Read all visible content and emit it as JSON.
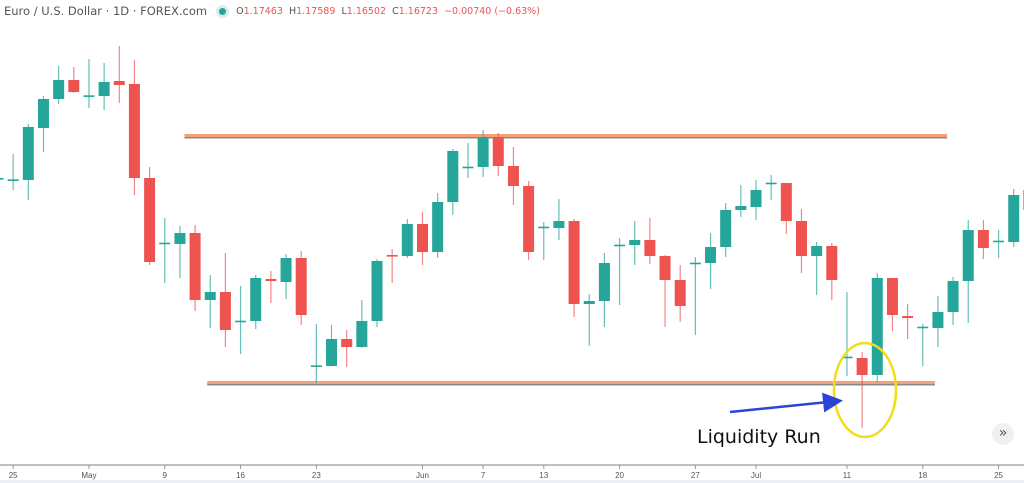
{
  "header": {
    "symbol_title": "Euro / U.S. Dollar · 1D · FOREX.com",
    "status_color": "#26a69a",
    "open_label": "O",
    "open": "1.17463",
    "high_label": "H",
    "high": "1.17589",
    "low_label": "L",
    "low": "1.16502",
    "close_label": "C",
    "close": "1.16723",
    "change": "−0.00740 (−0.63%)"
  },
  "annotation": {
    "text": "Liquidity Run",
    "highlight_color": "#f2dc1c",
    "arrow_color": "#2a44d8"
  },
  "scroll_button": {
    "icon": "double-chevron-right-icon",
    "glyph": "»"
  },
  "chart_data": {
    "type": "candlestick",
    "title": "",
    "colors": {
      "up": "#26a69a",
      "down": "#ef5350",
      "level_line": "#f4a07a"
    },
    "x_ticks": [
      {
        "label": "25",
        "index": 1
      },
      {
        "label": "May",
        "index": 6
      },
      {
        "label": "9",
        "index": 11
      },
      {
        "label": "16",
        "index": 16
      },
      {
        "label": "23",
        "index": 21
      },
      {
        "label": "Jun",
        "index": 28
      },
      {
        "label": "7",
        "index": 32
      },
      {
        "label": "13",
        "index": 36
      },
      {
        "label": "20",
        "index": 41
      },
      {
        "label": "27",
        "index": 46
      },
      {
        "label": "Jul",
        "index": 50
      },
      {
        "label": "11",
        "index": 56
      },
      {
        "label": "18",
        "index": 61
      },
      {
        "label": "25",
        "index": 66
      }
    ],
    "candles_ohlc": [
      [
        1.2033,
        1.2039,
        1.2027,
        1.2033
      ],
      [
        1.203,
        1.2069,
        1.2015,
        1.2031
      ],
      [
        1.203,
        1.2114,
        1.2,
        1.21095
      ],
      [
        1.2108,
        1.2156,
        1.2072,
        1.21515
      ],
      [
        1.21515,
        1.2201,
        1.2144,
        1.218
      ],
      [
        1.218,
        1.21995,
        1.21605,
        1.2162
      ],
      [
        1.2156,
        1.22115,
        1.2138,
        1.2157
      ],
      [
        1.2156,
        1.22055,
        1.2135,
        1.2177
      ],
      [
        1.21785,
        1.2231,
        1.21455,
        1.21725
      ],
      [
        1.2174,
        1.221,
        1.20075,
        1.2033
      ],
      [
        1.2033,
        1.20495,
        1.19025,
        1.1907
      ],
      [
        1.19355,
        1.1973,
        1.18755,
        1.1936
      ],
      [
        1.1934,
        1.1961,
        1.1883,
        1.19505
      ],
      [
        1.19505,
        1.19625,
        1.18335,
        1.185
      ],
      [
        1.185,
        1.18875,
        1.1808,
        1.1862
      ],
      [
        1.1862,
        1.19205,
        1.17795,
        1.1805
      ],
      [
        1.18185,
        1.1871,
        1.1769,
        1.1819
      ],
      [
        1.18185,
        1.18875,
        1.18065,
        1.1883
      ],
      [
        1.18815,
        1.18935,
        1.18455,
        1.18785
      ],
      [
        1.1877,
        1.1919,
        1.18515,
        1.1913
      ],
      [
        1.1913,
        1.19235,
        1.18125,
        1.18275
      ],
      [
        1.1751,
        1.1814,
        1.17255,
        1.1752
      ],
      [
        1.1751,
        1.18125,
        1.175,
        1.17915
      ],
      [
        1.17915,
        1.1805,
        1.17495,
        1.17795
      ],
      [
        1.17795,
        1.185,
        1.1778,
        1.18185
      ],
      [
        1.18185,
        1.19115,
        1.18095,
        1.19085
      ],
      [
        1.19175,
        1.19265,
        1.18755,
        1.1917
      ],
      [
        1.1916,
        1.19715,
        1.1913,
        1.1964
      ],
      [
        1.1964,
        1.1982,
        1.19025,
        1.1922
      ],
      [
        1.1922,
        1.20105,
        1.1913,
        1.1997
      ],
      [
        1.1997,
        1.20765,
        1.19775,
        1.20735
      ],
      [
        1.20495,
        1.20855,
        1.2033,
        1.205
      ],
      [
        1.20495,
        1.2105,
        1.20345,
        1.20945
      ],
      [
        1.20945,
        1.21005,
        1.2036,
        1.2051
      ],
      [
        1.2051,
        1.20795,
        1.19925,
        1.2021
      ],
      [
        1.2021,
        1.20285,
        1.191,
        1.1922
      ],
      [
        1.19595,
        1.1967,
        1.191,
        1.196
      ],
      [
        1.1958,
        1.20015,
        1.194,
        1.19685
      ],
      [
        1.19685,
        1.19715,
        1.18245,
        1.1844
      ],
      [
        1.1844,
        1.1859,
        1.1781,
        1.18485
      ],
      [
        1.18485,
        1.19205,
        1.18095,
        1.19055
      ],
      [
        1.19325,
        1.1943,
        1.18425,
        1.1933
      ],
      [
        1.19325,
        1.19685,
        1.19025,
        1.194
      ],
      [
        1.194,
        1.1973,
        1.1904,
        1.1916
      ],
      [
        1.1916,
        1.19175,
        1.18095,
        1.188
      ],
      [
        1.188,
        1.19025,
        1.1817,
        1.1841
      ],
      [
        1.19055,
        1.19145,
        1.17975,
        1.1906
      ],
      [
        1.19055,
        1.19505,
        1.18665,
        1.19295
      ],
      [
        1.19295,
        1.19955,
        1.19145,
        1.1985
      ],
      [
        1.1985,
        1.20225,
        1.19745,
        1.1991
      ],
      [
        1.19895,
        1.203,
        1.197,
        1.2015
      ],
      [
        1.20255,
        1.20375,
        1.2,
        1.2026
      ],
      [
        1.20255,
        1.20255,
        1.1949,
        1.19685
      ],
      [
        1.19685,
        1.19865,
        1.18905,
        1.1916
      ],
      [
        1.1916,
        1.1937,
        1.18575,
        1.1931
      ],
      [
        1.1931,
        1.19355,
        1.185,
        1.188
      ],
      [
        1.17645,
        1.1862,
        1.1736,
        1.1765
      ],
      [
        1.1763,
        1.1772,
        1.1658,
        1.17375
      ],
      [
        1.17375,
        1.18905,
        1.1727,
        1.1883
      ],
      [
        1.1883,
        1.1883,
        1.18035,
        1.18275
      ],
      [
        1.1826,
        1.1844,
        1.17915,
        1.1823
      ],
      [
        1.18095,
        1.1814,
        1.1751,
        1.181
      ],
      [
        1.1808,
        1.1856,
        1.17795,
        1.1832
      ],
      [
        1.1832,
        1.18845,
        1.18125,
        1.18785
      ],
      [
        1.18785,
        1.197,
        1.18155,
        1.1955
      ],
      [
        1.1955,
        1.197,
        1.19115,
        1.1928
      ],
      [
        1.19385,
        1.1955,
        1.1913,
        1.1939
      ],
      [
        1.1937,
        1.20165,
        1.19295,
        1.20075
      ],
      [
        1.2015,
        1.2022,
        1.1985,
        1.1985
      ]
    ],
    "horizontal_levels": [
      {
        "kind": "resistance",
        "price": 1.2096,
        "from_index": 12.3,
        "to_index": 62.6
      },
      {
        "kind": "support",
        "price": 1.17255,
        "from_index": 13.8,
        "to_index": 61.8
      }
    ],
    "highlighted_candle_index": 57,
    "grid": false
  }
}
